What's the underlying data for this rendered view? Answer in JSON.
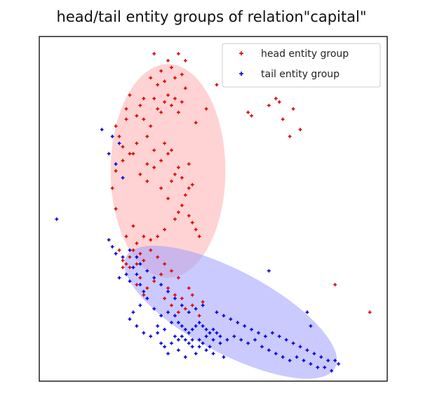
{
  "chart_data": {
    "type": "scatter",
    "title": "head/tail entity groups of relation\"capital\"",
    "xlabel": "",
    "ylabel": "",
    "xlim": [
      0,
      100
    ],
    "ylim": [
      0,
      100
    ],
    "grid": false,
    "ticks": "none",
    "legend_position": "top-right",
    "series": [
      {
        "name": "head entity group",
        "color": "#e00000",
        "marker": "+",
        "ellipse": {
          "cx": 37,
          "cy": 61,
          "rx": 16.5,
          "ry": 31,
          "angle": 0,
          "fill": "#ff9e9e",
          "opacity": 0.45
        },
        "points": [
          [
            31,
            58
          ],
          [
            33,
            62
          ],
          [
            35,
            56
          ],
          [
            37,
            53
          ],
          [
            38,
            58
          ],
          [
            40,
            49
          ],
          [
            41,
            51
          ],
          [
            42,
            54
          ],
          [
            43,
            56
          ],
          [
            39,
            47
          ],
          [
            36,
            44
          ],
          [
            34,
            42
          ],
          [
            32,
            41
          ],
          [
            30,
            42
          ],
          [
            28,
            40
          ],
          [
            26,
            36
          ],
          [
            25,
            34
          ],
          [
            24,
            33
          ],
          [
            27,
            38
          ],
          [
            29,
            37
          ],
          [
            33,
            82
          ],
          [
            34,
            79
          ],
          [
            35,
            78
          ],
          [
            36,
            81
          ],
          [
            37,
            83
          ],
          [
            38,
            80
          ],
          [
            39,
            82
          ],
          [
            40,
            78
          ],
          [
            41,
            81
          ],
          [
            42,
            85
          ],
          [
            32,
            74
          ],
          [
            31,
            71
          ],
          [
            30,
            76
          ],
          [
            29,
            80
          ],
          [
            28,
            77
          ],
          [
            26,
            83
          ],
          [
            25,
            79
          ],
          [
            23,
            71
          ],
          [
            24,
            68
          ],
          [
            27,
            66
          ],
          [
            38,
            91
          ],
          [
            39,
            88
          ],
          [
            36,
            87
          ],
          [
            34,
            86
          ],
          [
            37,
            93
          ],
          [
            33,
            95
          ],
          [
            35,
            90
          ],
          [
            40,
            95
          ],
          [
            42,
            93
          ],
          [
            41,
            89
          ],
          [
            30,
            82
          ],
          [
            32,
            88
          ],
          [
            28,
            69
          ],
          [
            26,
            66
          ],
          [
            24,
            64
          ],
          [
            22,
            61
          ],
          [
            21,
            56
          ],
          [
            22,
            50
          ],
          [
            36,
            69
          ],
          [
            38,
            67
          ],
          [
            40,
            62
          ],
          [
            41,
            59
          ],
          [
            43,
            63
          ],
          [
            44,
            57
          ],
          [
            39,
            60
          ],
          [
            37,
            66
          ],
          [
            35,
            64
          ],
          [
            33,
            67
          ],
          [
            31,
            63
          ],
          [
            29,
            60
          ],
          [
            27,
            45
          ],
          [
            25,
            42
          ],
          [
            23,
            38
          ],
          [
            24,
            35
          ],
          [
            26,
            33
          ],
          [
            28,
            34
          ],
          [
            30,
            35
          ],
          [
            32,
            38
          ],
          [
            34,
            36
          ],
          [
            36,
            34
          ],
          [
            38,
            32
          ],
          [
            40,
            30
          ],
          [
            39,
            25
          ],
          [
            38,
            22
          ],
          [
            40,
            20
          ],
          [
            42,
            21
          ],
          [
            44,
            22
          ],
          [
            46,
            19
          ],
          [
            41,
            24
          ],
          [
            43,
            27
          ],
          [
            35,
            31
          ],
          [
            33,
            29
          ],
          [
            31,
            27
          ],
          [
            30,
            25
          ],
          [
            29,
            30
          ],
          [
            28,
            28
          ],
          [
            37,
            27
          ],
          [
            36,
            24
          ],
          [
            47,
            23
          ],
          [
            44,
            25
          ],
          [
            51,
            86
          ],
          [
            60,
            78
          ],
          [
            61,
            77
          ],
          [
            66,
            80
          ],
          [
            69,
            81
          ],
          [
            70,
            76
          ],
          [
            72,
            71
          ],
          [
            75,
            73
          ],
          [
            85,
            28
          ],
          [
            95,
            20
          ],
          [
            73,
            79
          ],
          [
            68,
            82
          ],
          [
            48,
            79
          ],
          [
            45,
            75
          ],
          [
            22,
            74
          ],
          [
            25,
            76
          ],
          [
            43,
            48
          ],
          [
            44,
            46
          ],
          [
            45,
            44
          ],
          [
            46,
            42
          ]
        ]
      },
      {
        "name": "tail entity group",
        "color": "#0000e0",
        "marker": "+",
        "ellipse": {
          "cx": 55,
          "cy": 20,
          "rx": 34,
          "ry": 12,
          "angle": 28,
          "fill": "#9e9eff",
          "opacity": 0.55
        },
        "points": [
          [
            20,
            41
          ],
          [
            21,
            39
          ],
          [
            22,
            37
          ],
          [
            24,
            36
          ],
          [
            26,
            38
          ],
          [
            28,
            36
          ],
          [
            27,
            33
          ],
          [
            25,
            31
          ],
          [
            23,
            30
          ],
          [
            26,
            29
          ],
          [
            28,
            31
          ],
          [
            29,
            28
          ],
          [
            30,
            26
          ],
          [
            31,
            24
          ],
          [
            29,
            22
          ],
          [
            27,
            20
          ],
          [
            26,
            18
          ],
          [
            28,
            16
          ],
          [
            30,
            14
          ],
          [
            32,
            13
          ],
          [
            34,
            14
          ],
          [
            36,
            15
          ],
          [
            38,
            17
          ],
          [
            35,
            19
          ],
          [
            33,
            21
          ],
          [
            37,
            20
          ],
          [
            39,
            19
          ],
          [
            40,
            17
          ],
          [
            41,
            16
          ],
          [
            42,
            15
          ],
          [
            43,
            14
          ],
          [
            44,
            15
          ],
          [
            45,
            16
          ],
          [
            46,
            17
          ],
          [
            47,
            16
          ],
          [
            48,
            15
          ],
          [
            49,
            14
          ],
          [
            50,
            15
          ],
          [
            51,
            14
          ],
          [
            52,
            13
          ],
          [
            44,
            12
          ],
          [
            46,
            12
          ],
          [
            48,
            13
          ],
          [
            50,
            12
          ],
          [
            52,
            11
          ],
          [
            54,
            12
          ],
          [
            56,
            13
          ],
          [
            58,
            12
          ],
          [
            60,
            11
          ],
          [
            62,
            12
          ],
          [
            64,
            10
          ],
          [
            66,
            9
          ],
          [
            68,
            8
          ],
          [
            70,
            7
          ],
          [
            72,
            6
          ],
          [
            74,
            7
          ],
          [
            76,
            6
          ],
          [
            78,
            5
          ],
          [
            80,
            4
          ],
          [
            82,
            4
          ],
          [
            84,
            3
          ],
          [
            86,
            5
          ],
          [
            85,
            6
          ],
          [
            83,
            6
          ],
          [
            81,
            7
          ],
          [
            79,
            8
          ],
          [
            77,
            9
          ],
          [
            75,
            10
          ],
          [
            73,
            11
          ],
          [
            71,
            12
          ],
          [
            69,
            13
          ],
          [
            67,
            14
          ],
          [
            65,
            13
          ],
          [
            63,
            14
          ],
          [
            61,
            15
          ],
          [
            59,
            16
          ],
          [
            57,
            17
          ],
          [
            55,
            18
          ],
          [
            53,
            19
          ],
          [
            51,
            20
          ],
          [
            47,
            22
          ],
          [
            45,
            21
          ],
          [
            43,
            20
          ],
          [
            41,
            22
          ],
          [
            39,
            24
          ],
          [
            37,
            26
          ],
          [
            35,
            28
          ],
          [
            33,
            30
          ],
          [
            31,
            32
          ],
          [
            29,
            34
          ],
          [
            37,
            8
          ],
          [
            40,
            9
          ],
          [
            42,
            7
          ],
          [
            45,
            8
          ],
          [
            48,
            9
          ],
          [
            50,
            8
          ],
          [
            53,
            7
          ],
          [
            40,
            12
          ],
          [
            41,
            13
          ],
          [
            42,
            12
          ],
          [
            34,
            16
          ],
          [
            35,
            11
          ],
          [
            36,
            10
          ],
          [
            38,
            11
          ],
          [
            39,
            13
          ],
          [
            43,
            11
          ],
          [
            44,
            10
          ],
          [
            46,
            10
          ],
          [
            47,
            11
          ],
          [
            49,
            10
          ],
          [
            24,
            59
          ],
          [
            22,
            63
          ],
          [
            20,
            66
          ],
          [
            23,
            69
          ],
          [
            21,
            71
          ],
          [
            18,
            73
          ],
          [
            5,
            47
          ],
          [
            77,
            20
          ],
          [
            66,
            32
          ],
          [
            78,
            16
          ]
        ]
      }
    ]
  }
}
